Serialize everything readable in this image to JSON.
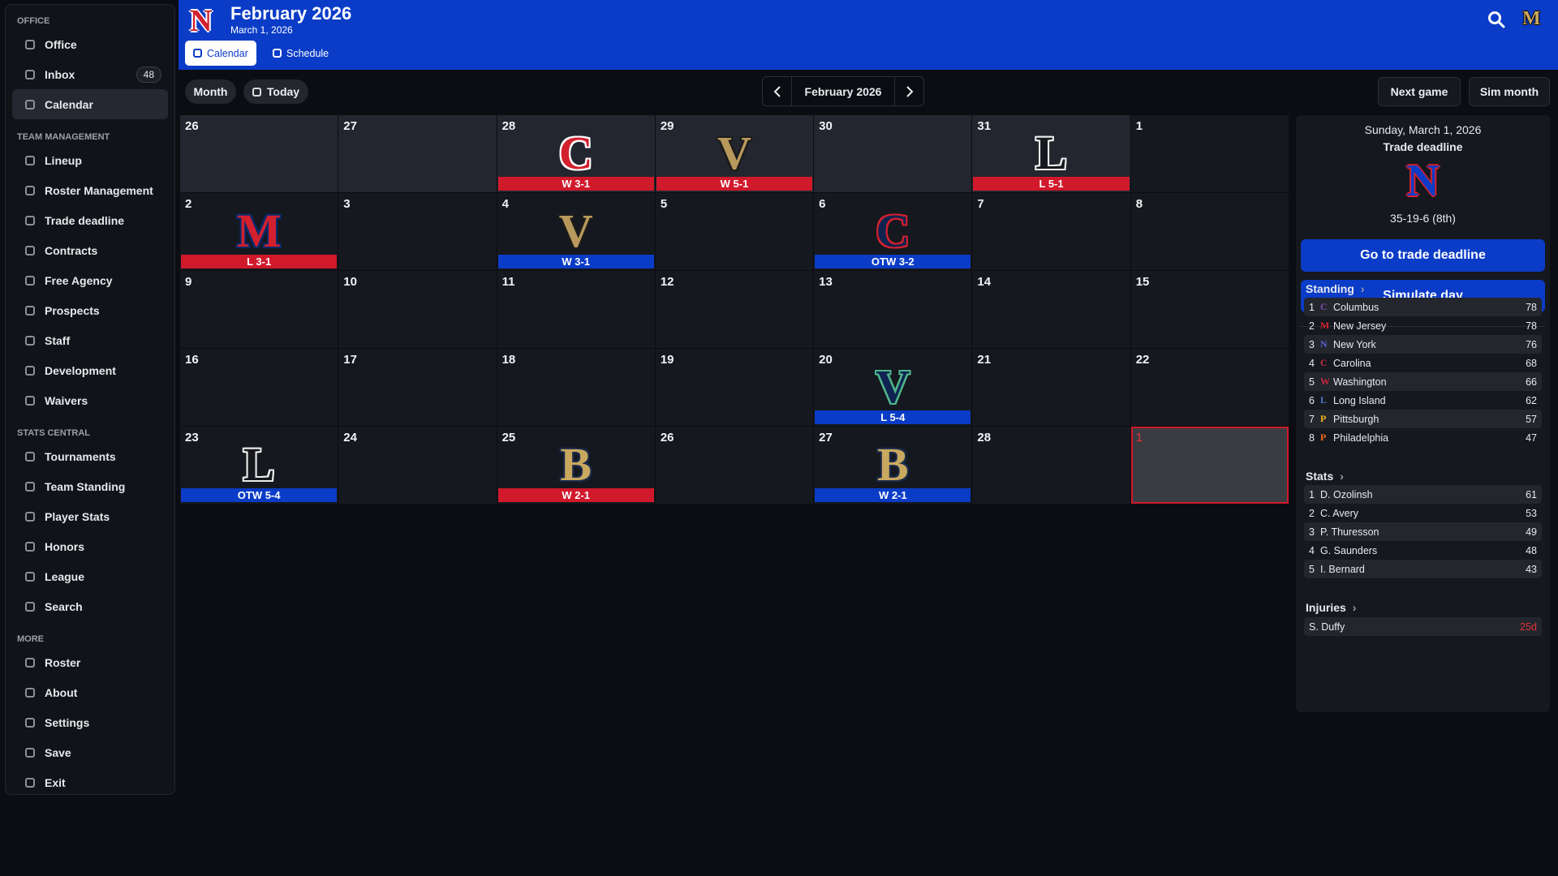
{
  "sidebar": {
    "sections": [
      {
        "title": "OFFICE",
        "items": [
          {
            "label": "Office"
          },
          {
            "label": "Inbox",
            "badge": 48
          },
          {
            "label": "Calendar",
            "active": true
          }
        ]
      },
      {
        "title": "TEAM MANAGEMENT",
        "items": [
          {
            "label": "Lineup"
          },
          {
            "label": "Roster Management"
          },
          {
            "label": "Trade deadline"
          },
          {
            "label": "Contracts"
          },
          {
            "label": "Free Agency"
          },
          {
            "label": "Prospects"
          },
          {
            "label": "Staff"
          },
          {
            "label": "Development"
          },
          {
            "label": "Waivers"
          }
        ]
      },
      {
        "title": "STATS CENTRAL",
        "items": [
          {
            "label": "Tournaments"
          },
          {
            "label": "Team Standing"
          },
          {
            "label": "Player Stats"
          },
          {
            "label": "Honors"
          },
          {
            "label": "League"
          },
          {
            "label": "Search"
          }
        ]
      },
      {
        "title": "MORE",
        "items": [
          {
            "label": "Roster"
          },
          {
            "label": "About"
          },
          {
            "label": "Settings"
          },
          {
            "label": "Save"
          },
          {
            "label": "Exit"
          }
        ]
      }
    ]
  },
  "header": {
    "logo": "N",
    "title": "February 2026",
    "subtitle": "March 1, 2026",
    "tabs": [
      {
        "label": "Calendar",
        "active": true
      },
      {
        "label": "Schedule"
      }
    ],
    "corner_logo": "M"
  },
  "toolbar": {
    "left": [
      "Month",
      "Today"
    ],
    "month": "February 2026",
    "right": [
      "Next game",
      "Sim month"
    ]
  },
  "calendar": {
    "weeks": [
      [
        {
          "day": 26,
          "outside": true
        },
        {
          "day": 27,
          "outside": true
        },
        {
          "day": 28,
          "outside": true,
          "logo": "C",
          "logo_color": "#d3202e",
          "logo_stroke": "#ffffff",
          "result": "W 3-1",
          "result_color": "#d0192b"
        },
        {
          "day": 29,
          "outside": true,
          "logo": "V",
          "logo_color": "#b8995c",
          "logo_stroke": "#1c1c1c",
          "result": "W 5-1",
          "result_color": "#d0192b"
        },
        {
          "day": 30,
          "outside": true
        },
        {
          "day": 31,
          "outside": true,
          "logo": "L",
          "logo_color": "#16181d",
          "logo_stroke": "#ececec",
          "result": "L 5-1",
          "result_color": "#d0192b"
        },
        {
          "day": 1
        }
      ],
      [
        {
          "day": 2,
          "logo": "M",
          "logo_color": "#d3202e",
          "logo_stroke": "#0a2a6b",
          "result": "L 3-1",
          "result_color": "#d0192b"
        },
        {
          "day": 3
        },
        {
          "day": 4,
          "logo": "V",
          "logo_color": "#b8995c",
          "logo_stroke": "#1c1c1c",
          "result": "W 3-1",
          "result_color": "#0b3cc7"
        },
        {
          "day": 5
        },
        {
          "day": 6,
          "logo": "C",
          "logo_color": "#0e2350",
          "logo_stroke": "#d3202e",
          "result": "OTW 3-2",
          "result_color": "#0b3cc7"
        },
        {
          "day": 7
        },
        {
          "day": 8
        }
      ],
      [
        {
          "day": 9
        },
        {
          "day": 10
        },
        {
          "day": 11
        },
        {
          "day": 12
        },
        {
          "day": 13
        },
        {
          "day": 14
        },
        {
          "day": 15
        }
      ],
      [
        {
          "day": 16
        },
        {
          "day": 17
        },
        {
          "day": 18
        },
        {
          "day": 19
        },
        {
          "day": 20,
          "logo": "V",
          "logo_color": "#0e2350",
          "logo_stroke": "#4fb38a",
          "result": "L 5-4",
          "result_color": "#0b3cc7"
        },
        {
          "day": 21
        },
        {
          "day": 22
        }
      ],
      [
        {
          "day": 23,
          "logo": "L",
          "logo_color": "#16181d",
          "logo_stroke": "#ececec",
          "result": "OTW 5-4",
          "result_color": "#0b3cc7"
        },
        {
          "day": 24
        },
        {
          "day": 25,
          "logo": "B",
          "logo_color": "#c9a85f",
          "logo_stroke": "#1b2a4a",
          "result": "W 2-1",
          "result_color": "#d0192b"
        },
        {
          "day": 26
        },
        {
          "day": 27,
          "logo": "B",
          "logo_color": "#c9a85f",
          "logo_stroke": "#1b2a4a",
          "result": "W 2-1",
          "result_color": "#0b3cc7"
        },
        {
          "day": 28
        },
        {
          "day": 1,
          "today": true
        }
      ]
    ]
  },
  "panel": {
    "date": "Sunday, March 1, 2026",
    "event": "Trade deadline",
    "logo": "N",
    "record": "35-19-6 (8th)",
    "buttons": [
      "Go to trade deadline",
      "Simulate day"
    ],
    "standing": {
      "title": "Standing",
      "rows": [
        {
          "rank": 1,
          "icon": "C",
          "icon_color": "#7a4fb0",
          "team": "Columbus",
          "value": 78
        },
        {
          "rank": 2,
          "icon": "M",
          "icon_color": "#d3202e",
          "team": "New Jersey",
          "value": 78
        },
        {
          "rank": 3,
          "icon": "N",
          "icon_color": "#5b5fd6",
          "team": "New York",
          "value": 76
        },
        {
          "rank": 4,
          "icon": "C",
          "icon_color": "#c0303a",
          "team": "Carolina",
          "value": 68
        },
        {
          "rank": 5,
          "icon": "W",
          "icon_color": "#c8283a",
          "team": "Washington",
          "value": 66
        },
        {
          "rank": 6,
          "icon": "L",
          "icon_color": "#4a78d0",
          "team": "Long Island",
          "value": 62
        },
        {
          "rank": 7,
          "icon": "P",
          "icon_color": "#f0b820",
          "team": "Pittsburgh",
          "value": 57
        },
        {
          "rank": 8,
          "icon": "P",
          "icon_color": "#f06a20",
          "team": "Philadelphia",
          "value": 47
        }
      ]
    },
    "stats": {
      "title": "Stats",
      "rows": [
        {
          "rank": 1,
          "name": "D. Ozolinsh",
          "value": 61
        },
        {
          "rank": 2,
          "name": "C. Avery",
          "value": 53
        },
        {
          "rank": 3,
          "name": "P. Thuresson",
          "value": 49
        },
        {
          "rank": 4,
          "name": "G. Saunders",
          "value": 48
        },
        {
          "rank": 5,
          "name": "I. Bernard",
          "value": 43
        }
      ]
    },
    "injuries": {
      "title": "Injuries",
      "rows": [
        {
          "name": "S. Duffy",
          "value": "25d",
          "color": "#e5333d"
        }
      ]
    }
  }
}
